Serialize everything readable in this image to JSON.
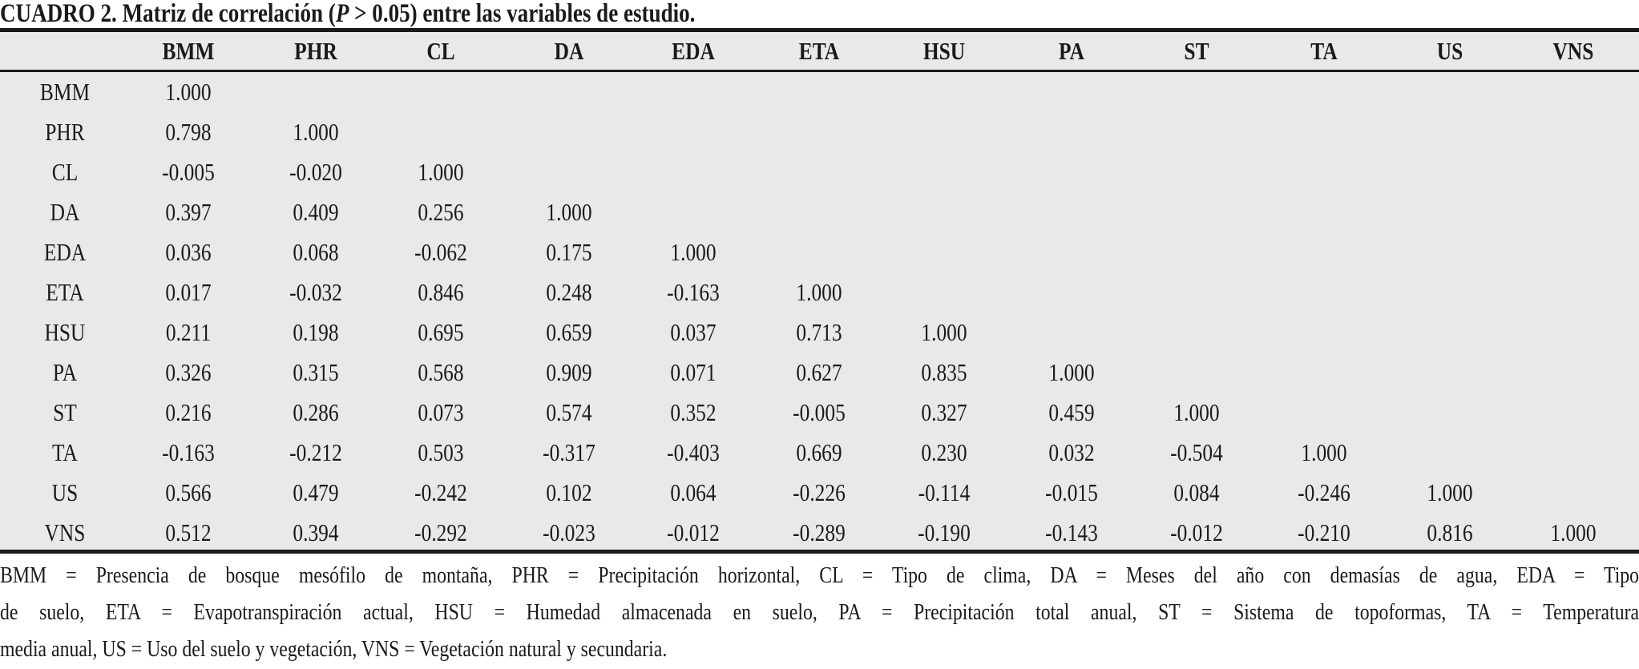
{
  "title": {
    "prefix": "CUADRO 2. Matriz de correlación (",
    "italic": "P",
    "suffix": " > 0.05) entre las variables de estudio."
  },
  "columns": [
    "BMM",
    "PHR",
    "CL",
    "DA",
    "EDA",
    "ETA",
    "HSU",
    "PA",
    "ST",
    "TA",
    "US",
    "VNS"
  ],
  "rows": [
    {
      "label": "BMM",
      "values": [
        "1.000"
      ]
    },
    {
      "label": "PHR",
      "values": [
        "0.798",
        "1.000"
      ]
    },
    {
      "label": "CL",
      "values": [
        "-0.005",
        "-0.020",
        "1.000"
      ]
    },
    {
      "label": "DA",
      "values": [
        "0.397",
        "0.409",
        "0.256",
        "1.000"
      ]
    },
    {
      "label": "EDA",
      "values": [
        "0.036",
        "0.068",
        "-0.062",
        "0.175",
        "1.000"
      ]
    },
    {
      "label": "ETA",
      "values": [
        "0.017",
        "-0.032",
        "0.846",
        "0.248",
        "-0.163",
        "1.000"
      ]
    },
    {
      "label": "HSU",
      "values": [
        "0.211",
        "0.198",
        "0.695",
        "0.659",
        "0.037",
        "0.713",
        "1.000"
      ]
    },
    {
      "label": "PA",
      "values": [
        "0.326",
        "0.315",
        "0.568",
        "0.909",
        "0.071",
        "0.627",
        "0.835",
        "1.000"
      ]
    },
    {
      "label": "ST",
      "values": [
        "0.216",
        "0.286",
        "0.073",
        "0.574",
        "0.352",
        "-0.005",
        "0.327",
        "0.459",
        "1.000"
      ]
    },
    {
      "label": "TA",
      "values": [
        "-0.163",
        "-0.212",
        "0.503",
        "-0.317",
        "-0.403",
        "0.669",
        "0.230",
        "0.032",
        "-0.504",
        "1.000"
      ]
    },
    {
      "label": "US",
      "values": [
        "0.566",
        "0.479",
        "-0.242",
        "0.102",
        "0.064",
        "-0.226",
        "-0.114",
        "-0.015",
        "0.084",
        "-0.246",
        "1.000"
      ]
    },
    {
      "label": "VNS",
      "values": [
        "0.512",
        "0.394",
        "-0.292",
        "-0.023",
        "-0.012",
        "-0.289",
        "-0.190",
        "-0.143",
        "-0.012",
        "-0.210",
        "0.816",
        "1.000"
      ]
    }
  ],
  "footnote": {
    "lines": [
      "BMM = Presencia de bosque mesófilo de montaña, PHR = Precipitación horizontal, CL = Tipo de clima, DA = Meses del año con demasías de agua, EDA = Tipo",
      "de suelo, ETA = Evapotranspiración actual, HSU = Humedad almacenada en suelo, PA = Precipitación total anual, ST = Sistema de topoformas, TA = Temperatura",
      "media anual, US = Uso del suelo y vegetación, VNS = Vegetación natural y secundaria."
    ]
  },
  "colors": {
    "panel": "#e9e9e9",
    "text": "#1a1a1a"
  }
}
